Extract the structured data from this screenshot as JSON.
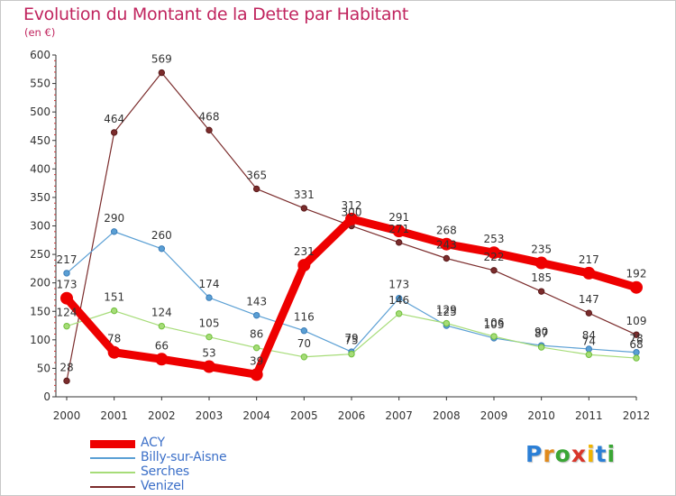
{
  "title": "Evolution du Montant de la Dette par Habitant",
  "subtitle": "(en €)",
  "logo": {
    "text": "Proxiti",
    "letter_colors": [
      "#2b7fd6",
      "#e08a1c",
      "#3aa635",
      "#d9352a",
      "#f0b400",
      "#2b7fd6",
      "#3aa635"
    ]
  },
  "chart_data": {
    "type": "line",
    "title": "Evolution du Montant de la Dette par Habitant",
    "subtitle": "(en €)",
    "x": [
      "2000",
      "2001",
      "2002",
      "2003",
      "2004",
      "2005",
      "2006",
      "2007",
      "2008",
      "2009",
      "2010",
      "2011",
      "2012"
    ],
    "yticks": [
      0,
      50,
      100,
      150,
      200,
      250,
      300,
      350,
      400,
      450,
      500,
      550,
      600
    ],
    "ylim": [
      0,
      600
    ],
    "grid": false,
    "legend_position": "bottom-left",
    "series": [
      {
        "name": "ACY",
        "color": "#ee0000",
        "values": [
          173,
          78,
          66,
          53,
          39,
          231,
          312,
          291,
          268,
          253,
          235,
          217,
          192
        ],
        "labels": [
          "173",
          "78",
          "66",
          "53",
          "39",
          "231",
          "312",
          "291",
          "268",
          "253",
          "235",
          "217",
          "192"
        ]
      },
      {
        "name": "Billy-sur-Aisne",
        "color": "#5a9fd4",
        "values": [
          217,
          290,
          260,
          174,
          143,
          116,
          79,
          173,
          125,
          103,
          90,
          84,
          78
        ],
        "labels": [
          "217",
          "290",
          "260",
          "174",
          "143",
          "116",
          "79",
          "173",
          "125",
          "103",
          "90",
          "84",
          "78"
        ]
      },
      {
        "name": "Serches",
        "color": "#a6dc78",
        "values": [
          124,
          151,
          124,
          105,
          86,
          70,
          75,
          146,
          129,
          106,
          87,
          74,
          68
        ],
        "labels": [
          "124",
          "151",
          "124",
          "105",
          "86",
          "70",
          "75",
          "146",
          "129",
          "106",
          "87",
          "74",
          "68"
        ]
      },
      {
        "name": "Venizel",
        "color": "#7b2c2c",
        "values": [
          28,
          464,
          569,
          468,
          365,
          331,
          300,
          271,
          243,
          222,
          185,
          147,
          109
        ],
        "labels": [
          "28",
          "464",
          "569",
          "468",
          "365",
          "331",
          "300",
          "271",
          "243",
          "222",
          "185",
          "147",
          "109"
        ]
      }
    ]
  }
}
